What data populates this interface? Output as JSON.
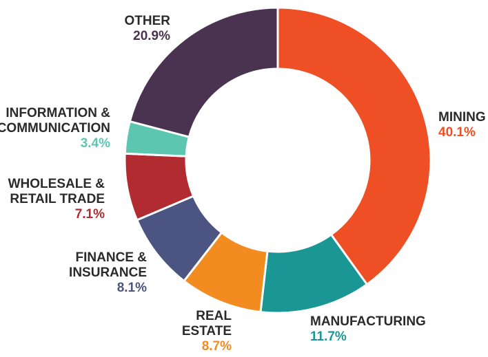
{
  "chart_data": {
    "type": "pie",
    "variant": "donut",
    "title": "",
    "slices": [
      {
        "label_lines": [
          "MINING"
        ],
        "value": 40.1,
        "value_label": "40.1%",
        "color": "#EE4F24"
      },
      {
        "label_lines": [
          "MANUFACTURING"
        ],
        "value": 11.7,
        "value_label": "11.7%",
        "color": "#1A9694"
      },
      {
        "label_lines": [
          "REAL",
          "ESTATE"
        ],
        "value": 8.7,
        "value_label": "8.7%",
        "color": "#F28B20"
      },
      {
        "label_lines": [
          "FINANCE &",
          "INSURANCE"
        ],
        "value": 8.1,
        "value_label": "8.1%",
        "color": "#4C5482"
      },
      {
        "label_lines": [
          "WHOLESALE &",
          "RETAIL TRADE"
        ],
        "value": 7.1,
        "value_label": "7.1%",
        "color": "#B12B30"
      },
      {
        "label_lines": [
          "INFORMATION &",
          "COMMUNICATION"
        ],
        "value": 3.4,
        "value_label": "3.4%",
        "color": "#5CC6B1"
      },
      {
        "label_lines": [
          "OTHER"
        ],
        "value": 20.9,
        "value_label": "20.9%",
        "color": "#4A3350"
      }
    ]
  }
}
